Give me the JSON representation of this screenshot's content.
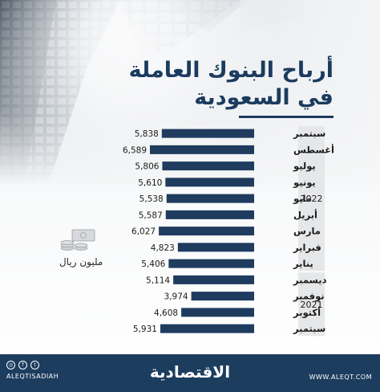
{
  "title": {
    "line1": "أرباح البنوك العاملة",
    "line2": "في السعودية"
  },
  "unit_label": "مليون ريال",
  "chart_data": {
    "type": "bar",
    "orientation": "horizontal",
    "categories": [
      "سبتمبر",
      "أغسطس",
      "يوليو",
      "يونيو",
      "مايو",
      "أبريل",
      "مارس",
      "فبراير",
      "يناير",
      "ديسمبر",
      "نوفمبر",
      "أكتوبر",
      "سبتمبر"
    ],
    "values": [
      5838,
      6589,
      5806,
      5610,
      5538,
      5587,
      6027,
      4823,
      5406,
      5114,
      3974,
      4608,
      5931
    ],
    "value_labels": [
      "5,838",
      "6,589",
      "5,806",
      "5,610",
      "5,538",
      "5,587",
      "6,027",
      "4,823",
      "5,406",
      "5,114",
      "3,974",
      "4,608",
      "5,931"
    ],
    "groups": [
      {
        "label": "2022",
        "from": 0,
        "to": 8
      },
      {
        "label": "2021",
        "from": 9,
        "to": 12
      }
    ],
    "bar_color": "#1f3c5e"
  },
  "footer": {
    "handle": "ALEQTISADIAH",
    "logo": "الاقتصادية",
    "website": "WWW.ALEQT.COM"
  },
  "icons": [
    "instagram-icon",
    "facebook-icon",
    "twitter-icon",
    "coins-icon"
  ]
}
